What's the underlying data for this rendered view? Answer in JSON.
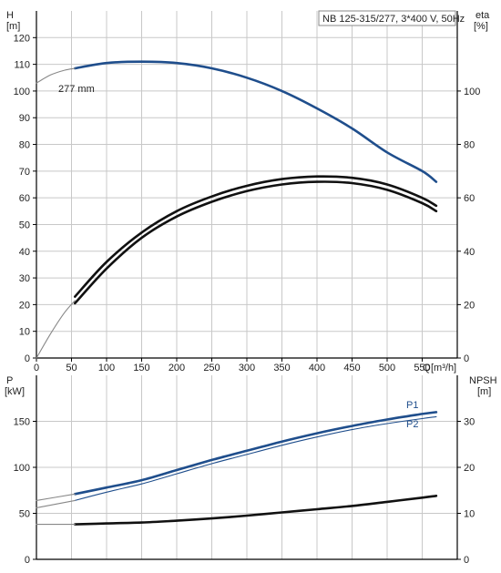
{
  "chart_data": [
    {
      "type": "line",
      "panel": "head-efficiency",
      "info_box": "NB 125-315/277, 3*400 V, 50Hz",
      "x": {
        "label_left": "Q",
        "label_unit": "[m³/h]",
        "range": [
          0,
          600
        ],
        "ticks": [
          0,
          50,
          100,
          150,
          200,
          250,
          300,
          350,
          400,
          450,
          500,
          550
        ]
      },
      "y_left": {
        "label": "H",
        "unit": "[m]",
        "range": [
          0,
          130
        ],
        "ticks": [
          0,
          10,
          20,
          30,
          40,
          50,
          60,
          70,
          80,
          90,
          100,
          110,
          120
        ]
      },
      "y_right": {
        "label": "eta",
        "unit": "[%]",
        "range": [
          0,
          130
        ],
        "ticks": [
          0,
          20,
          40,
          60,
          80,
          100
        ]
      },
      "grid": true,
      "series": [
        {
          "name": "277 mm",
          "axis": "left",
          "color": "#1f4e8c",
          "style": "thick",
          "x": [
            55,
            100,
            150,
            200,
            250,
            300,
            350,
            400,
            450,
            500,
            550,
            570
          ],
          "y": [
            108.5,
            110.5,
            111,
            110.5,
            108.5,
            105,
            100,
            93.5,
            86,
            77,
            70,
            66
          ]
        },
        {
          "name": "",
          "axis": "left",
          "color": "#888888",
          "style": "thin",
          "x": [
            0,
            20,
            40,
            55
          ],
          "y": [
            103,
            106,
            107.8,
            108.5
          ]
        },
        {
          "name": "",
          "axis": "right",
          "color": "#111111",
          "style": "thick",
          "x": [
            55,
            100,
            150,
            200,
            250,
            300,
            350,
            400,
            450,
            500,
            550,
            570
          ],
          "y": [
            23,
            36,
            47,
            55,
            60.5,
            64.5,
            67,
            68,
            67.5,
            65,
            60,
            57
          ]
        },
        {
          "name": "",
          "axis": "right",
          "color": "#111111",
          "style": "thick",
          "x": [
            55,
            100,
            150,
            200,
            250,
            300,
            350,
            400,
            450,
            500,
            550,
            570
          ],
          "y": [
            20.5,
            33.5,
            45,
            53,
            58.5,
            62.5,
            65,
            66,
            65.5,
            63,
            58,
            55
          ]
        },
        {
          "name": "",
          "axis": "right",
          "color": "#888888",
          "style": "thin",
          "x": [
            0,
            20,
            40,
            55
          ],
          "y": [
            0,
            9,
            17,
            21.5
          ]
        }
      ]
    },
    {
      "type": "line",
      "panel": "power-npsh",
      "x": {
        "range": [
          0,
          600
        ],
        "ticks": [
          0,
          50,
          100,
          150,
          200,
          250,
          300,
          350,
          400,
          450,
          500,
          550
        ]
      },
      "y_left": {
        "label": "P",
        "unit": "[kW]",
        "range": [
          0,
          200
        ],
        "ticks": [
          0,
          50,
          100,
          150
        ]
      },
      "y_right": {
        "label": "NPSH",
        "unit": "[m]",
        "range": [
          0,
          40
        ],
        "ticks": [
          0,
          10,
          20,
          30
        ]
      },
      "grid": true,
      "series": [
        {
          "name": "P1",
          "axis": "left",
          "color": "#1f4e8c",
          "style": "thick",
          "x": [
            55,
            100,
            150,
            200,
            250,
            300,
            350,
            400,
            450,
            500,
            550,
            570
          ],
          "y": [
            71,
            78,
            86,
            97,
            108,
            118,
            128,
            137,
            145,
            152,
            158,
            160
          ]
        },
        {
          "name": "P2",
          "axis": "left",
          "color": "#1f4e8c",
          "style": "thin",
          "x": [
            55,
            100,
            150,
            200,
            250,
            300,
            350,
            400,
            450,
            500,
            550,
            570
          ],
          "y": [
            64,
            73,
            82,
            93,
            104,
            114,
            124,
            133,
            141,
            147.5,
            153,
            155
          ]
        },
        {
          "name": "",
          "axis": "left",
          "color": "#888888",
          "style": "thin",
          "x": [
            0,
            55
          ],
          "y": [
            64,
            71
          ]
        },
        {
          "name": "",
          "axis": "left",
          "color": "#888888",
          "style": "thin",
          "x": [
            0,
            55
          ],
          "y": [
            56,
            64
          ]
        },
        {
          "name": "",
          "axis": "right",
          "color": "#111111",
          "style": "thick",
          "x": [
            55,
            100,
            150,
            200,
            250,
            300,
            350,
            400,
            450,
            500,
            550,
            570
          ],
          "y": [
            7.6,
            7.8,
            8.0,
            8.4,
            8.9,
            9.5,
            10.2,
            10.9,
            11.6,
            12.5,
            13.4,
            13.8
          ]
        },
        {
          "name": "",
          "axis": "right",
          "color": "#888888",
          "style": "thin",
          "x": [
            0,
            55
          ],
          "y": [
            7.6,
            7.6
          ]
        }
      ]
    }
  ]
}
